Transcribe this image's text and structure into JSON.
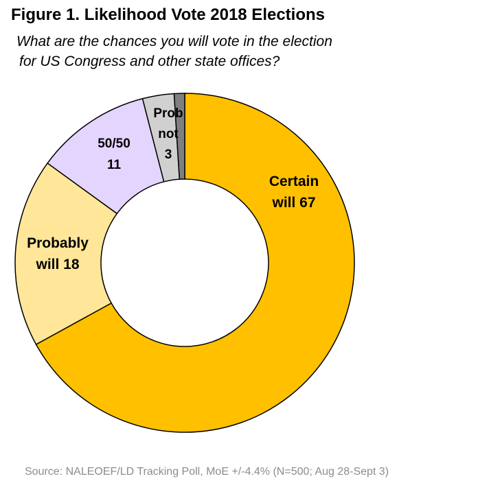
{
  "figure": {
    "title": "Figure 1. Likelihood Vote 2018 Elections",
    "subtitle_line1": "What are the chances you will vote in the election",
    "subtitle_line2": "for US Congress and other state offices?",
    "source": "Source: NALEOEF/LD Tracking Poll, MoE +/-4.4% (N=500; Aug 28-Sept 3)"
  },
  "chart_data": {
    "type": "pie",
    "donut": true,
    "title": "Figure 1. Likelihood Vote 2018 Elections",
    "categories": [
      "Certain will",
      "Probably will",
      "50/50",
      "Prob not",
      ""
    ],
    "values": [
      67,
      18,
      11,
      3,
      1
    ],
    "colors": [
      "#ffc000",
      "#ffe699",
      "#e4d5ff",
      "#d0d0d0",
      "#7f7f7f"
    ],
    "start_angle_deg": 0,
    "direction": "clockwise",
    "labels": [
      {
        "lines": [
          "Certain",
          "will 67"
        ]
      },
      {
        "lines": [
          "Probably",
          "will 18"
        ]
      },
      {
        "lines": [
          "50/50",
          "11"
        ]
      },
      {
        "lines": [
          "Prob",
          "not",
          "3"
        ]
      },
      {
        "lines": []
      }
    ]
  }
}
